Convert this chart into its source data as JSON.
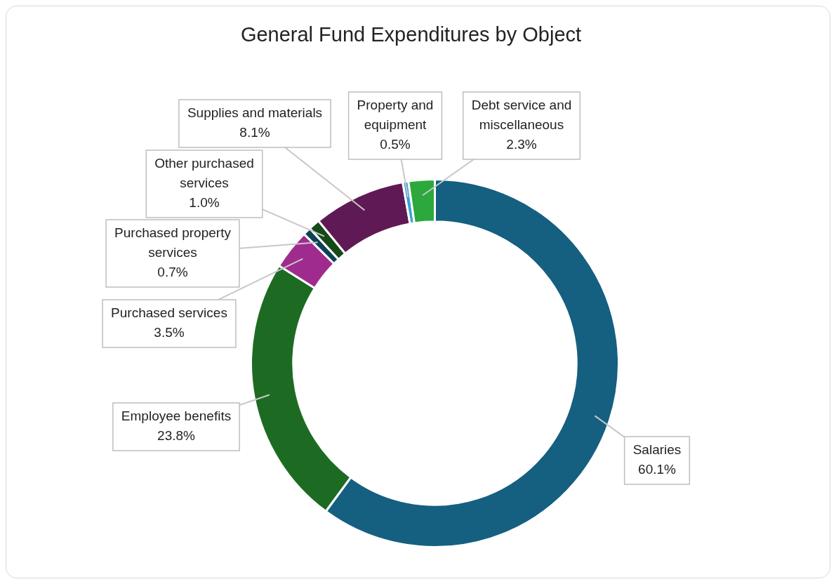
{
  "chart_data": {
    "type": "donut",
    "title": "General Fund Expenditures by Object",
    "categories": [
      "Salaries",
      "Employee benefits",
      "Purchased services",
      "Purchased property services",
      "Other purchased services",
      "Supplies and materials",
      "Property and equipment",
      "Debt service and miscellaneous"
    ],
    "values": [
      60.1,
      23.8,
      3.5,
      0.7,
      1.0,
      8.1,
      0.5,
      2.3
    ],
    "value_labels": [
      "60.1%",
      "23.8%",
      "3.5%",
      "0.7%",
      "1.0%",
      "8.1%",
      "0.5%",
      "2.3%"
    ],
    "colors": [
      "#155f80",
      "#1d6b23",
      "#a02b8f",
      "#0e4155",
      "#154a17",
      "#5f1a55",
      "#3aa0d8",
      "#2ca83c"
    ],
    "legend": false
  }
}
